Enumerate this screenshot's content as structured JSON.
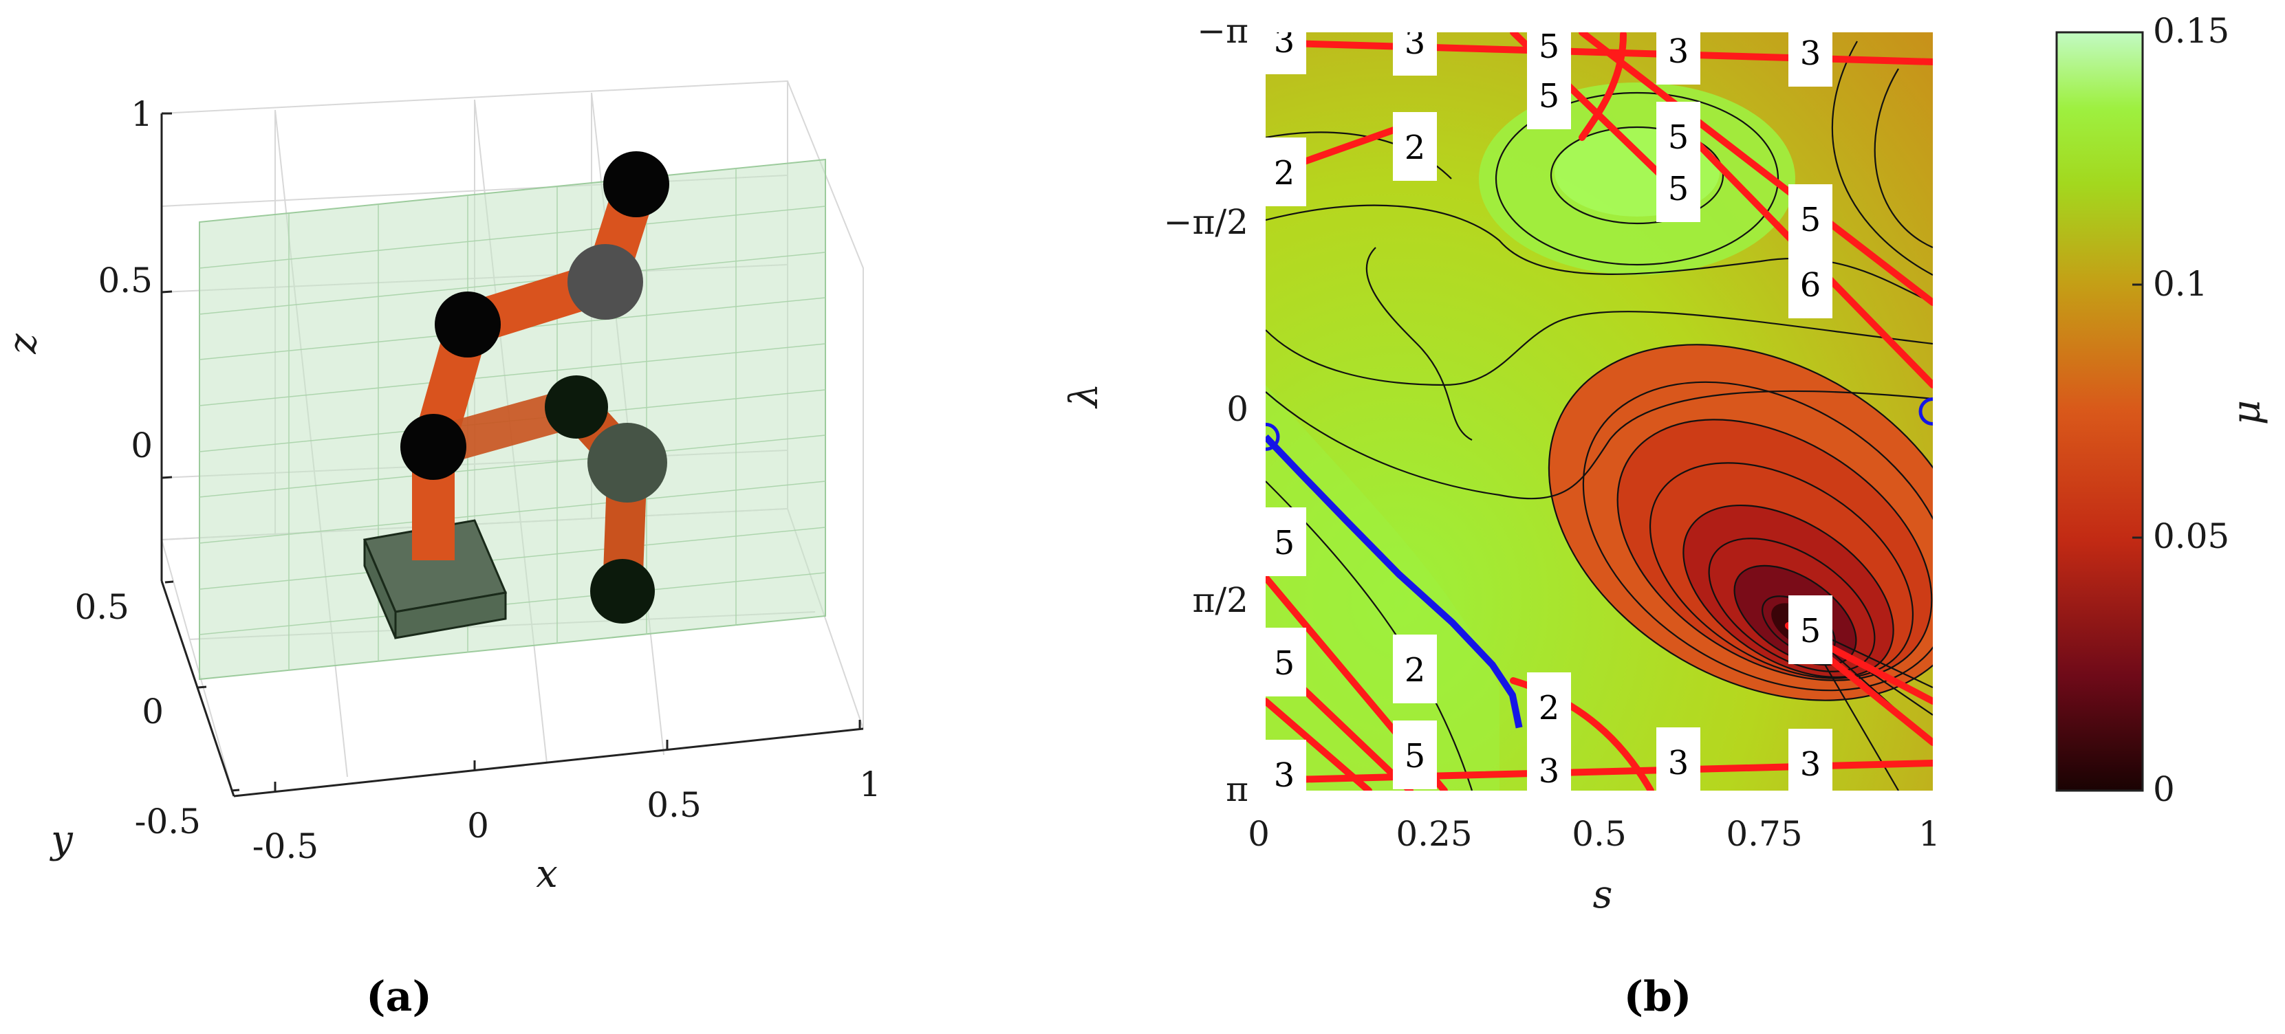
{
  "figure": {
    "panel_a_caption": "(a)",
    "panel_b_caption": "(b)"
  },
  "chart_data": [
    {
      "type": "scatter",
      "panel": "a",
      "title": "",
      "xlabel": "x",
      "ylabel": "y",
      "zlabel": "z",
      "x_ticks": [
        "-0.5",
        "0",
        "0.5",
        "1"
      ],
      "y_ticks": [
        "-0.5",
        "0",
        "0.5"
      ],
      "z_ticks": [
        "0",
        "0.5",
        "1"
      ],
      "xlim": [
        -0.5,
        1
      ],
      "ylim": [
        -0.5,
        0.5
      ],
      "zlim": [
        -0.25,
        1
      ],
      "grid": true,
      "colors": {
        "link": "#d9531e",
        "joint": "#000000",
        "joint_alt": "#505050",
        "plane": "#c6e6c6",
        "base": "#4f6550"
      },
      "series": []
    },
    {
      "type": "heatmap",
      "panel": "b",
      "title": "",
      "xlabel": "s",
      "ylabel": "λ",
      "colorbar_label": "μ",
      "x_ticks": [
        "0",
        "0.25",
        "0.5",
        "0.75",
        "1"
      ],
      "y_ticks": [
        "−π",
        "−π/2",
        "0",
        "π/2",
        "π"
      ],
      "colorbar_ticks": [
        "0.15",
        "0.1",
        "0.05",
        "0"
      ],
      "xlim": [
        0,
        1
      ],
      "ylim": [
        -3.1416,
        3.1416
      ],
      "clim": [
        0,
        0.15
      ],
      "colormap": [
        "#2a0505",
        "#7a0a1a",
        "#c22a14",
        "#d9541a",
        "#c8901a",
        "#a9bd14",
        "#9ef03a",
        "#b4f8b4"
      ],
      "contour_labels": [
        "3",
        "3",
        "5",
        "3",
        "3",
        "5",
        "2",
        "2",
        "5",
        "5",
        "5",
        "5",
        "6",
        "5",
        "5",
        "2",
        "2",
        "5",
        "3",
        "3",
        "3",
        "3"
      ],
      "path": {
        "color": "#1515e6",
        "s": [
          0.0,
          0.05,
          0.12,
          0.2,
          0.28,
          0.34,
          0.37,
          0.38
        ],
        "lambda": [
          0.21,
          0.5,
          0.9,
          1.35,
          1.75,
          2.1,
          2.35,
          2.62
        ]
      },
      "markers": [
        {
          "s": 0.0,
          "lambda": 0.21
        },
        {
          "s": 1.0,
          "lambda": 0.0
        }
      ]
    }
  ]
}
